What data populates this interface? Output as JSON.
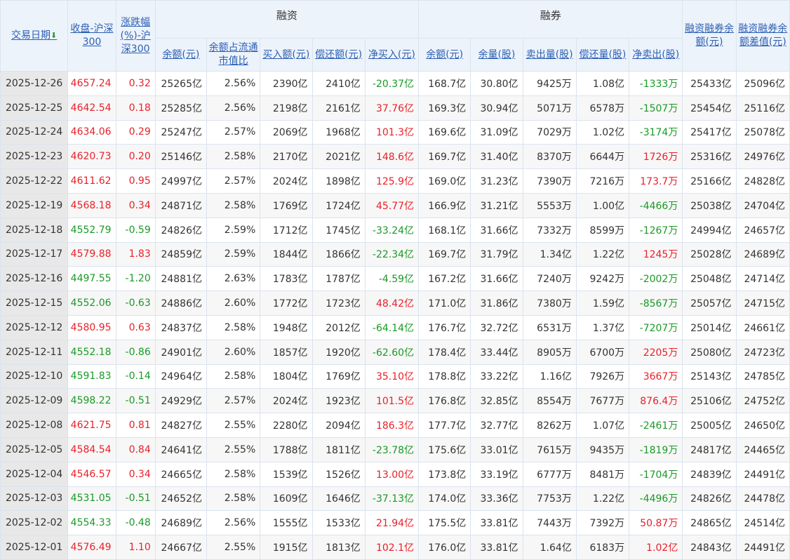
{
  "header": {
    "group_rz": "融资",
    "group_rq": "融券",
    "date": "交易日期",
    "close": "收盘-沪深300",
    "change": "涨跌幅(%)-沪深300",
    "rz_balance": "余额(元)",
    "rz_ratio": "余额占流通市值比",
    "rz_buy": "买入额(元)",
    "rz_repay": "偿还额(元)",
    "rz_net": "净买入(元)",
    "rq_balance": "余额(元)",
    "rq_volume": "余量(股)",
    "rq_sell": "卖出量(股)",
    "rq_repay": "偿还量(股)",
    "rq_net": "净卖出(股)",
    "total_balance": "融资融券余额(元)",
    "diff": "融资融券余额差值(元)"
  },
  "colors": {
    "red": "#e8212a",
    "green": "#1a9a27",
    "link": "#2c5fb3"
  },
  "rows": [
    [
      "2025-12-26",
      "4657.24",
      "0.32",
      "25265亿",
      "2.56%",
      "2390亿",
      "2410亿",
      "-20.37亿",
      "168.7亿",
      "30.80亿",
      "9425万",
      "1.08亿",
      "-1333万",
      "25433亿",
      "25096亿"
    ],
    [
      "2025-12-25",
      "4642.54",
      "0.18",
      "25285亿",
      "2.56%",
      "2198亿",
      "2161亿",
      "37.76亿",
      "169.3亿",
      "30.94亿",
      "5071万",
      "6578万",
      "-1507万",
      "25454亿",
      "25116亿"
    ],
    [
      "2025-12-24",
      "4634.06",
      "0.29",
      "25247亿",
      "2.57%",
      "2069亿",
      "1968亿",
      "101.3亿",
      "169.6亿",
      "31.09亿",
      "7029万",
      "1.02亿",
      "-3174万",
      "25417亿",
      "25078亿"
    ],
    [
      "2025-12-23",
      "4620.73",
      "0.20",
      "25146亿",
      "2.58%",
      "2170亿",
      "2021亿",
      "148.6亿",
      "169.7亿",
      "31.40亿",
      "8370万",
      "6644万",
      "1726万",
      "25316亿",
      "24976亿"
    ],
    [
      "2025-12-22",
      "4611.62",
      "0.95",
      "24997亿",
      "2.57%",
      "2024亿",
      "1898亿",
      "125.9亿",
      "169.0亿",
      "31.23亿",
      "7390万",
      "7216万",
      "173.7万",
      "25166亿",
      "24828亿"
    ],
    [
      "2025-12-19",
      "4568.18",
      "0.34",
      "24871亿",
      "2.58%",
      "1769亿",
      "1724亿",
      "45.77亿",
      "166.9亿",
      "31.21亿",
      "5553万",
      "1.00亿",
      "-4466万",
      "25038亿",
      "24704亿"
    ],
    [
      "2025-12-18",
      "4552.79",
      "-0.59",
      "24826亿",
      "2.59%",
      "1712亿",
      "1745亿",
      "-33.24亿",
      "168.1亿",
      "31.66亿",
      "7332万",
      "8599万",
      "-1267万",
      "24994亿",
      "24657亿"
    ],
    [
      "2025-12-17",
      "4579.88",
      "1.83",
      "24859亿",
      "2.59%",
      "1844亿",
      "1866亿",
      "-22.34亿",
      "169.7亿",
      "31.79亿",
      "1.34亿",
      "1.22亿",
      "1245万",
      "25028亿",
      "24689亿"
    ],
    [
      "2025-12-16",
      "4497.55",
      "-1.20",
      "24881亿",
      "2.63%",
      "1783亿",
      "1787亿",
      "-4.59亿",
      "167.2亿",
      "31.66亿",
      "7240万",
      "9242万",
      "-2002万",
      "25048亿",
      "24714亿"
    ],
    [
      "2025-12-15",
      "4552.06",
      "-0.63",
      "24886亿",
      "2.60%",
      "1772亿",
      "1723亿",
      "48.42亿",
      "171.0亿",
      "31.86亿",
      "7380万",
      "1.59亿",
      "-8567万",
      "25057亿",
      "24715亿"
    ],
    [
      "2025-12-12",
      "4580.95",
      "0.63",
      "24837亿",
      "2.58%",
      "1948亿",
      "2012亿",
      "-64.14亿",
      "176.7亿",
      "32.72亿",
      "6531万",
      "1.37亿",
      "-7207万",
      "25014亿",
      "24661亿"
    ],
    [
      "2025-12-11",
      "4552.18",
      "-0.86",
      "24901亿",
      "2.60%",
      "1857亿",
      "1920亿",
      "-62.60亿",
      "178.4亿",
      "33.44亿",
      "8905万",
      "6700万",
      "2205万",
      "25080亿",
      "24723亿"
    ],
    [
      "2025-12-10",
      "4591.83",
      "-0.14",
      "24964亿",
      "2.58%",
      "1804亿",
      "1769亿",
      "35.10亿",
      "178.8亿",
      "33.22亿",
      "1.16亿",
      "7926万",
      "3667万",
      "25143亿",
      "24785亿"
    ],
    [
      "2025-12-09",
      "4598.22",
      "-0.51",
      "24929亿",
      "2.57%",
      "2024亿",
      "1923亿",
      "101.5亿",
      "176.8亿",
      "32.85亿",
      "8554万",
      "7677万",
      "876.4万",
      "25106亿",
      "24752亿"
    ],
    [
      "2025-12-08",
      "4621.75",
      "0.81",
      "24827亿",
      "2.55%",
      "2280亿",
      "2094亿",
      "186.3亿",
      "177.7亿",
      "32.77亿",
      "8262万",
      "1.07亿",
      "-2461万",
      "25005亿",
      "24650亿"
    ],
    [
      "2025-12-05",
      "4584.54",
      "0.84",
      "24641亿",
      "2.55%",
      "1788亿",
      "1811亿",
      "-23.78亿",
      "175.6亿",
      "33.01亿",
      "7615万",
      "9435万",
      "-1819万",
      "24817亿",
      "24465亿"
    ],
    [
      "2025-12-04",
      "4546.57",
      "0.34",
      "24665亿",
      "2.58%",
      "1539亿",
      "1526亿",
      "13.00亿",
      "173.8亿",
      "33.19亿",
      "6777万",
      "8481万",
      "-1704万",
      "24839亿",
      "24491亿"
    ],
    [
      "2025-12-03",
      "4531.05",
      "-0.51",
      "24652亿",
      "2.58%",
      "1609亿",
      "1646亿",
      "-37.13亿",
      "174.0亿",
      "33.36亿",
      "7753万",
      "1.22亿",
      "-4496万",
      "24826亿",
      "24478亿"
    ],
    [
      "2025-12-02",
      "4554.33",
      "-0.48",
      "24689亿",
      "2.56%",
      "1555亿",
      "1533亿",
      "21.94亿",
      "175.5亿",
      "33.81亿",
      "7443万",
      "7392万",
      "50.87万",
      "24865亿",
      "24514亿"
    ],
    [
      "2025-12-01",
      "4576.49",
      "1.10",
      "24667亿",
      "2.55%",
      "1915亿",
      "1813亿",
      "102.1亿",
      "176.0亿",
      "33.81亿",
      "1.64亿",
      "6183万",
      "1.02亿",
      "24843亿",
      "24491亿"
    ]
  ]
}
